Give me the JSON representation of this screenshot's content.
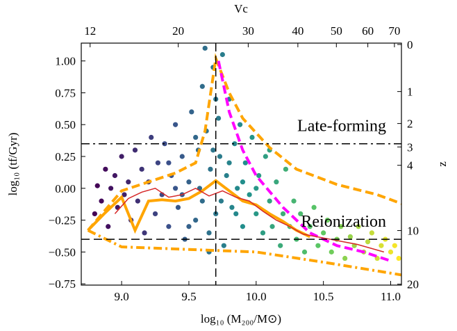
{
  "chart_data": {
    "type": "scatter",
    "xlabel": "log₁₀ (M₂₀₀/M⊙)",
    "ylabel": "log₁₀ (tf/Gyr)",
    "x2label": "Vc",
    "y2label": "z",
    "xlim": [
      8.7,
      11.08
    ],
    "ylim": [
      -0.76,
      1.14
    ],
    "xticks": [
      {
        "value": 9,
        "label": "9.0"
      },
      9.5,
      {
        "value": 10,
        "label": "10.0"
      },
      10.5,
      {
        "value": 11,
        "label": "11.0"
      }
    ],
    "yticks": [
      {
        "value": -0.75,
        "label": "−0.75"
      },
      {
        "value": -0.5,
        "label": "−0.50"
      },
      {
        "value": -0.25,
        "label": "−0.25"
      },
      {
        "value": 0,
        "label": "0.00"
      },
      {
        "value": 0.25,
        "label": "0.25"
      },
      {
        "value": 0.5,
        "label": "0.50"
      },
      {
        "value": 0.75,
        "label": "0.75"
      },
      {
        "value": 1,
        "label": "1.00"
      }
    ],
    "x2_scale": "log",
    "x2lim": [
      11.4,
      72.9
    ],
    "x2ticks": [
      12,
      20,
      30,
      40,
      50,
      60,
      70
    ],
    "y2_scale": "redshift",
    "y2ticks": [
      0,
      1,
      2,
      3,
      4,
      10,
      20
    ],
    "colormap": "viridis",
    "color_by": "x",
    "x": [
      8.8,
      8.82,
      8.85,
      8.88,
      8.9,
      8.92,
      8.95,
      8.97,
      9.0,
      9.02,
      9.05,
      9.07,
      9.1,
      9.12,
      9.15,
      9.17,
      9.2,
      9.22,
      9.25,
      9.27,
      9.3,
      9.32,
      9.35,
      9.37,
      9.4,
      9.42,
      9.45,
      9.47,
      9.5,
      9.52,
      9.55,
      9.57,
      9.6,
      9.6,
      9.62,
      9.63,
      9.65,
      9.66,
      9.68,
      9.7,
      9.72,
      9.73,
      9.75,
      9.76,
      9.78,
      9.8,
      9.82,
      9.84,
      9.86,
      9.88,
      9.9,
      9.92,
      9.95,
      9.97,
      10.0,
      10.02,
      10.05,
      10.07,
      10.1,
      10.12,
      10.15,
      10.18,
      10.2,
      10.22,
      10.25,
      10.28,
      10.3,
      10.33,
      10.36,
      10.4,
      10.43,
      10.46,
      10.5,
      10.53,
      10.56,
      10.6,
      10.63,
      10.66,
      10.7,
      10.73,
      10.76,
      10.8,
      10.83,
      10.86,
      10.9,
      10.93,
      10.96,
      11.0,
      11.03,
      11.06,
      9.58,
      9.68,
      9.74,
      9.55,
      9.45,
      9.35,
      9.8,
      9.9,
      10.0,
      9.85,
      9.65,
      9.7,
      10.1,
      9.5,
      9.4
    ],
    "y": [
      -0.2,
      0.02,
      -0.1,
      0.15,
      -0.3,
      0.0,
      0.1,
      -0.15,
      0.25,
      -0.05,
      0.05,
      -0.25,
      0.3,
      -0.1,
      0.15,
      -0.35,
      0.05,
      0.4,
      -0.2,
      0.2,
      -0.05,
      0.35,
      -0.3,
      0.1,
      0.5,
      -0.15,
      0.25,
      -0.4,
      0.05,
      0.6,
      -0.25,
      0.3,
      0.8,
      -0.1,
      1.1,
      0.45,
      -0.35,
      0.15,
      0.95,
      -0.2,
      0.55,
      0.25,
      1.05,
      -0.45,
      0.1,
      0.7,
      -0.15,
      0.35,
      0.0,
      0.5,
      -0.3,
      0.2,
      -0.05,
      0.4,
      -0.2,
      0.1,
      -0.35,
      0.25,
      -0.1,
      -0.3,
      0.05,
      -0.45,
      -0.2,
      0.15,
      -0.3,
      -0.1,
      -0.4,
      -0.2,
      -0.5,
      -0.3,
      -0.15,
      -0.45,
      -0.35,
      -0.25,
      -0.5,
      -0.4,
      -0.3,
      -0.55,
      -0.38,
      -0.45,
      -0.3,
      -0.5,
      -0.42,
      -0.35,
      -0.55,
      -0.45,
      -0.4,
      -0.5,
      -0.45,
      -0.55,
      0.0,
      0.3,
      -0.1,
      0.4,
      -0.05,
      0.2,
      0.2,
      0.05,
      0.0,
      -0.2,
      -0.5,
      0.7,
      0.3,
      -0.3,
      0.0
    ],
    "lines": [
      {
        "color": "#ffa500",
        "style": "dashed",
        "x": [
          8.75,
          9.0,
          9.2,
          9.4,
          9.55,
          9.62,
          9.7,
          9.8,
          9.9,
          10.1,
          10.3,
          10.6,
          10.9,
          11.08
        ],
        "y": [
          -0.33,
          -0.02,
          0.05,
          0.12,
          0.2,
          0.45,
          1.02,
          0.75,
          0.55,
          0.32,
          0.15,
          0.03,
          -0.05,
          -0.12
        ]
      },
      {
        "color": "#ffa500",
        "style": "solid",
        "x": [
          8.75,
          8.87,
          9.0,
          9.1,
          9.2,
          9.3,
          9.4,
          9.5,
          9.6,
          9.7,
          9.8,
          9.9,
          10.0,
          10.1,
          10.2,
          10.3,
          10.4
        ],
        "y": [
          -0.33,
          -0.2,
          -0.07,
          -0.33,
          -0.1,
          -0.09,
          -0.1,
          -0.08,
          -0.02,
          0.06,
          -0.02,
          -0.1,
          -0.13,
          -0.2,
          -0.26,
          -0.33,
          -0.38
        ]
      },
      {
        "color": "#ffa500",
        "style": "dashdot",
        "x": [
          8.75,
          9.0,
          9.5,
          10.0,
          10.5,
          11.08
        ],
        "y": [
          -0.33,
          -0.46,
          -0.48,
          -0.5,
          -0.58,
          -0.68
        ]
      },
      {
        "color": "#ff00ff",
        "style": "dashed",
        "x": [
          9.72,
          9.8,
          9.9,
          10.0,
          10.2,
          10.4,
          10.6,
          10.8,
          11.0
        ],
        "y": [
          1.0,
          0.6,
          0.3,
          0.1,
          -0.15,
          -0.35,
          -0.45,
          -0.5,
          -0.57
        ]
      },
      {
        "color": "#d62728",
        "style": "thin",
        "x": [
          8.95,
          9.05,
          9.15,
          9.25,
          9.35,
          9.45,
          9.55,
          9.65,
          9.75,
          9.85,
          9.95,
          10.05,
          10.15,
          10.25,
          10.35,
          10.45,
          10.55,
          10.65,
          10.75,
          10.85,
          10.95
        ],
        "y": [
          -0.2,
          -0.08,
          -0.03,
          0.0,
          -0.07,
          -0.05,
          0.0,
          -0.06,
          -0.02,
          -0.07,
          -0.1,
          -0.18,
          -0.25,
          -0.3,
          -0.36,
          -0.38,
          -0.4,
          -0.42,
          -0.44,
          -0.47,
          -0.5
        ]
      }
    ],
    "hlines": [
      {
        "y": 0.35,
        "style": "dashdot",
        "label": "Late-forming"
      },
      {
        "y": -0.4,
        "style": "dashed",
        "label": "Reionization"
      }
    ],
    "vlines": [
      {
        "x": 9.7,
        "style": "dashed"
      }
    ]
  }
}
